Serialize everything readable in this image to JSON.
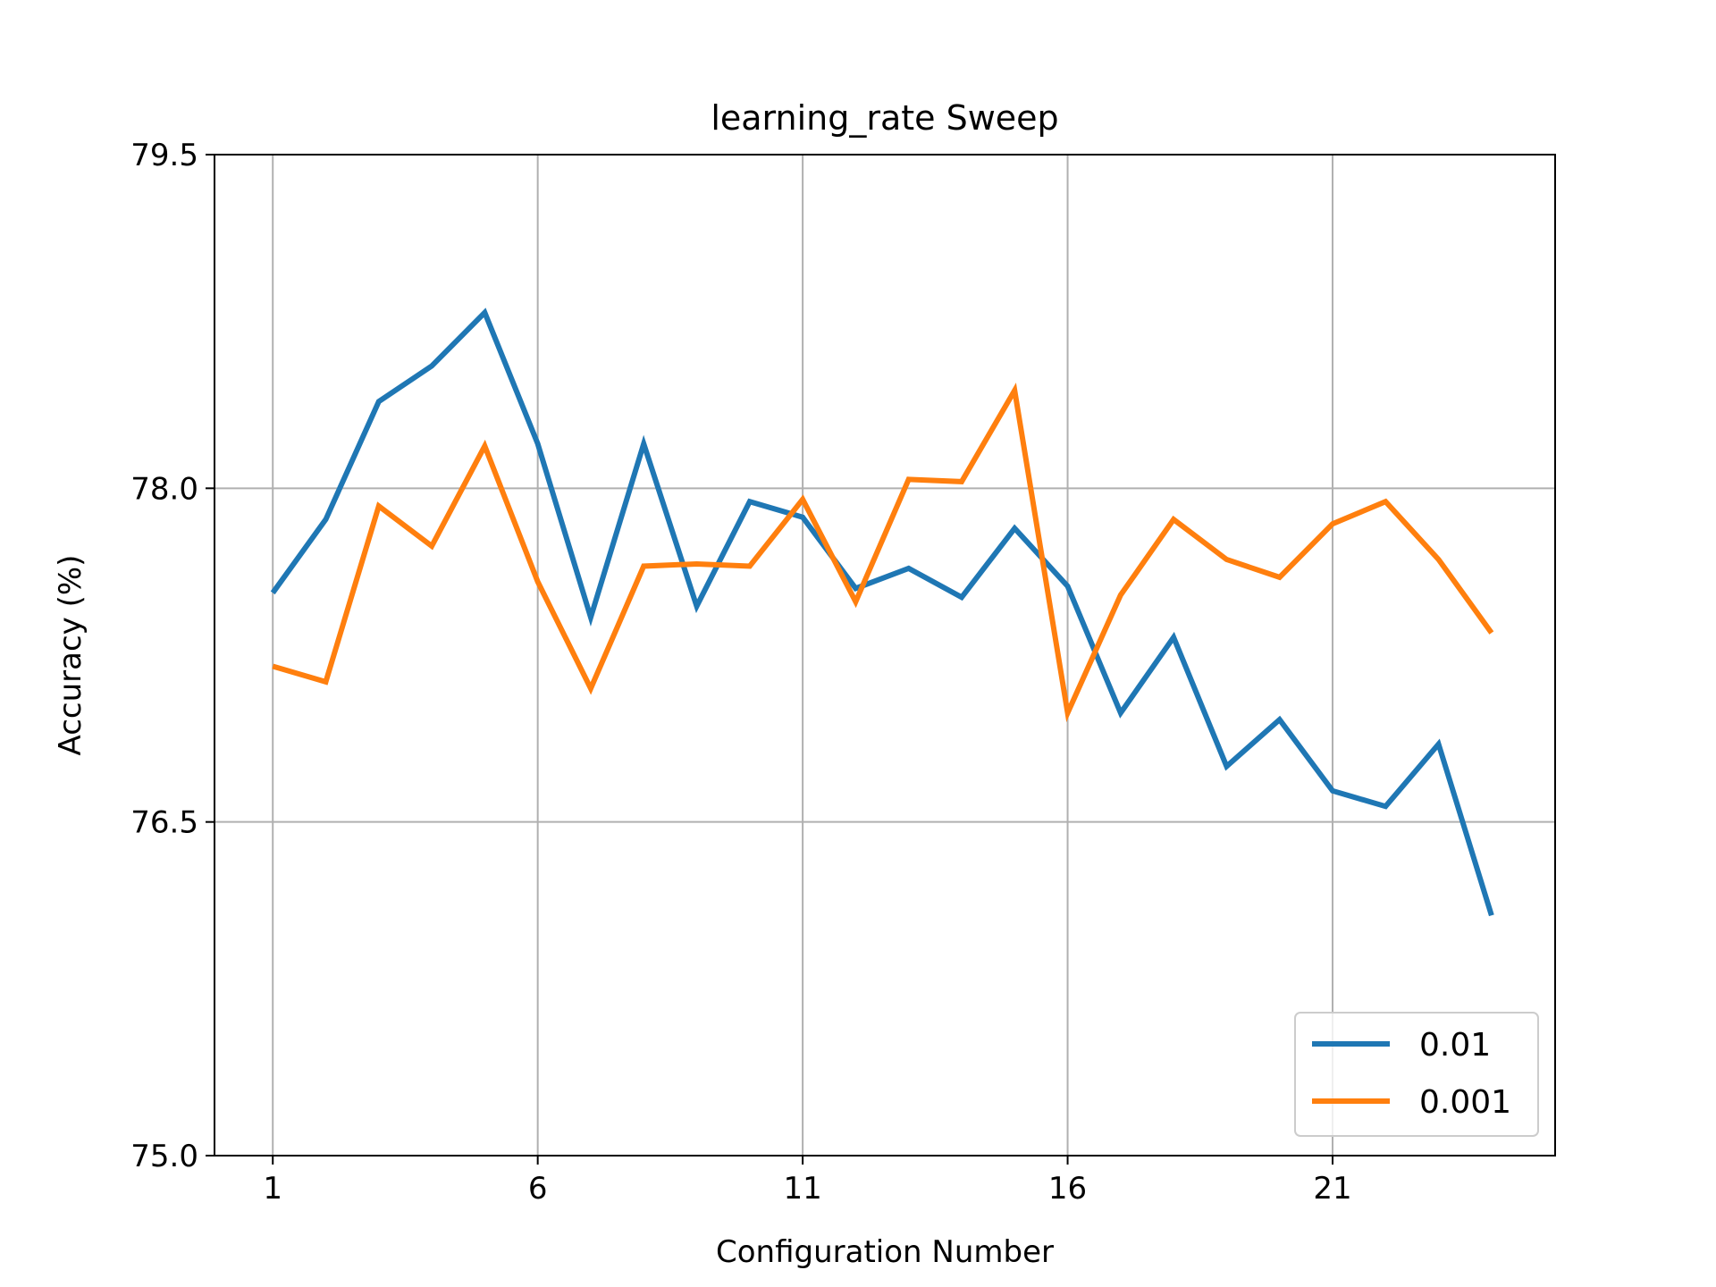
{
  "chart_data": {
    "type": "line",
    "title": "learning_rate Sweep",
    "xlabel": "Configuration Number",
    "ylabel": "Accuracy (%)",
    "x": [
      1,
      2,
      3,
      4,
      5,
      6,
      7,
      8,
      9,
      10,
      11,
      12,
      13,
      14,
      15,
      16,
      17,
      18,
      19,
      20,
      21,
      22,
      23,
      24
    ],
    "xlim": [
      -0.1,
      25.2
    ],
    "ylim": [
      75.0,
      79.5
    ],
    "xticks": [
      1,
      6,
      11,
      16,
      21
    ],
    "yticks": [
      75.0,
      76.5,
      78.0,
      79.5
    ],
    "xtick_labels": [
      "1",
      "6",
      "11",
      "16",
      "21"
    ],
    "ytick_labels": [
      "75.0",
      "76.5",
      "78.0",
      "79.5"
    ],
    "grid": true,
    "legend_position": "bottom-right",
    "series": [
      {
        "name": "0.01",
        "color": "#1f77b4",
        "values": [
          77.53,
          77.86,
          78.39,
          78.55,
          78.79,
          78.2,
          77.42,
          78.2,
          77.47,
          77.94,
          77.87,
          77.55,
          77.64,
          77.51,
          77.82,
          77.56,
          76.99,
          77.33,
          76.75,
          76.96,
          76.64,
          76.57,
          76.85,
          76.08
        ]
      },
      {
        "name": "0.001",
        "color": "#ff7f0e",
        "values": [
          77.2,
          77.13,
          77.92,
          77.74,
          78.19,
          77.58,
          77.1,
          77.65,
          77.66,
          77.65,
          77.95,
          77.49,
          78.04,
          78.03,
          78.44,
          76.99,
          77.52,
          77.86,
          77.68,
          77.6,
          77.84,
          77.94,
          77.68,
          77.35
        ]
      }
    ]
  }
}
